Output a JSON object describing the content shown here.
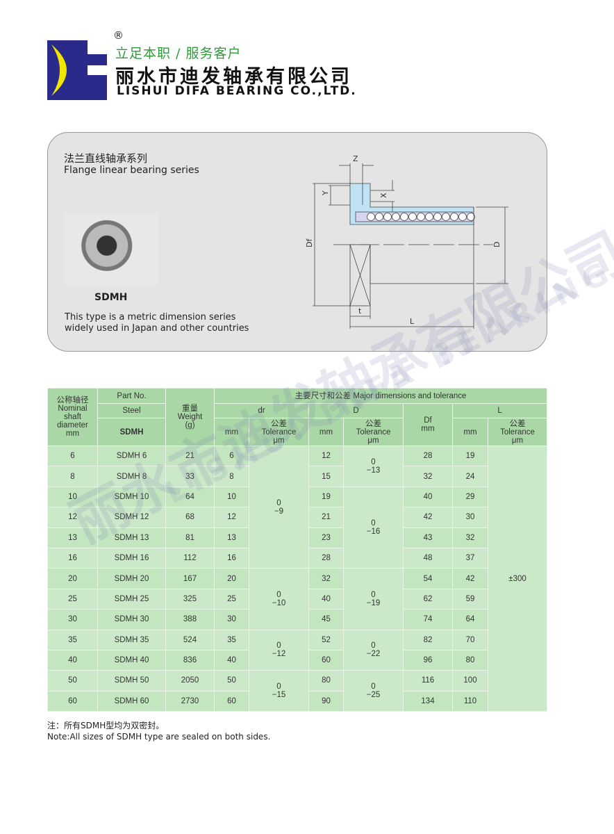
{
  "header": {
    "registered": "®",
    "slogan": "立足本职 / 服务客户",
    "company_cn": "丽水市迪发轴承有限公司",
    "company_en": "LISHUI DIFA BEARING CO.,LTD.",
    "logo_colors": {
      "blue": "#2a2a8a",
      "yellow": "#f2e600"
    }
  },
  "product": {
    "series_cn": "法兰直线轴承系列",
    "series_en": "Flange linear bearing series",
    "model": "SDMH",
    "desc_line1": "This type is a metric dimension series",
    "desc_line2": "widely used in Japan and other countries"
  },
  "diagram": {
    "labels": {
      "z": "Z",
      "y": "Y",
      "x": "X",
      "df": "Df",
      "d": "D",
      "t": "t",
      "l": "L"
    }
  },
  "watermark": {
    "cn": "丽水市迪发轴承有限公司",
    "en": "LISHUI DIFA BEARING CO.,LTD."
  },
  "table": {
    "h_nominal": "公称轴径",
    "h_nominal_en": "Nominal shaft diameter mm",
    "h_part": "Part No.",
    "h_steel": "Steel",
    "h_sdmh": "SDMH",
    "h_weight_cn": "重量",
    "h_weight": "Weight (g)",
    "h_major": "主要尺寸和公差 Major dimensions and tolerance",
    "h_dr": "dr",
    "h_D": "D",
    "h_Df": "Df mm",
    "h_L": "L",
    "h_mm": "mm",
    "h_tol_cn": "公差",
    "h_tol": "Tolerance μm",
    "rows": [
      [
        "6",
        "SDMH 6",
        "21",
        "6",
        "12",
        "28",
        "19"
      ],
      [
        "8",
        "SDMH 8",
        "33",
        "8",
        "15",
        "32",
        "24"
      ],
      [
        "10",
        "SDMH 10",
        "64",
        "10",
        "19",
        "40",
        "29"
      ],
      [
        "12",
        "SDMH 12",
        "68",
        "12",
        "21",
        "42",
        "30"
      ],
      [
        "13",
        "SDMH 13",
        "81",
        "13",
        "23",
        "43",
        "32"
      ],
      [
        "16",
        "SDMH 16",
        "112",
        "16",
        "28",
        "48",
        "37"
      ],
      [
        "20",
        "SDMH 20",
        "167",
        "20",
        "32",
        "54",
        "42"
      ],
      [
        "25",
        "SDMH 25",
        "325",
        "25",
        "40",
        "62",
        "59"
      ],
      [
        "30",
        "SDMH 30",
        "388",
        "30",
        "45",
        "74",
        "64"
      ],
      [
        "35",
        "SDMH 35",
        "524",
        "35",
        "52",
        "82",
        "70"
      ],
      [
        "40",
        "SDMH 40",
        "836",
        "40",
        "60",
        "96",
        "80"
      ],
      [
        "50",
        "SDMH 50",
        "2050",
        "50",
        "80",
        "116",
        "100"
      ],
      [
        "60",
        "SDMH 60",
        "2730",
        "60",
        "90",
        "134",
        "110"
      ]
    ],
    "dr_tol": [
      {
        "start": 0,
        "span": 6,
        "upper": "0",
        "lower": "−9"
      },
      {
        "start": 6,
        "span": 3,
        "upper": "0",
        "lower": "−10"
      },
      {
        "start": 9,
        "span": 2,
        "upper": "0",
        "lower": "−12"
      },
      {
        "start": 11,
        "span": 2,
        "upper": "0",
        "lower": "−15"
      }
    ],
    "D_tol": [
      {
        "start": 0,
        "span": 2,
        "upper": "0",
        "lower": "−13"
      },
      {
        "start": 2,
        "span": 4,
        "upper": "0",
        "lower": "−16"
      },
      {
        "start": 6,
        "span": 3,
        "upper": "0",
        "lower": "−19"
      },
      {
        "start": 9,
        "span": 2,
        "upper": "0",
        "lower": "−22"
      },
      {
        "start": 11,
        "span": 2,
        "upper": "0",
        "lower": "−25"
      }
    ],
    "L_tol": "±300"
  },
  "note": {
    "cn": "注：所有SDMH型均为双密封。",
    "en": "Note:All sizes of SDMH type are sealed on both sides."
  }
}
